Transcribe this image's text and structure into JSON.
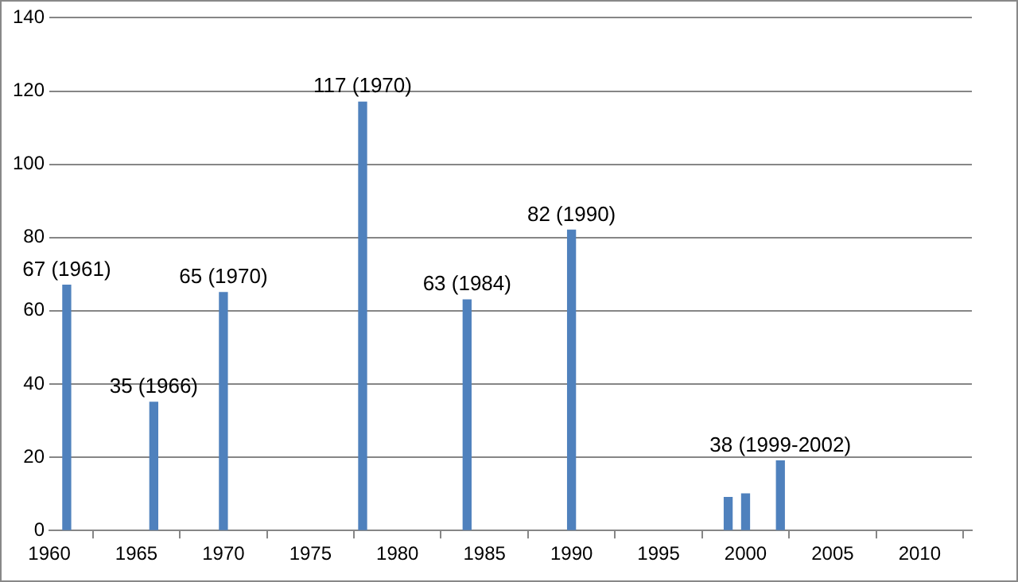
{
  "chart_data": {
    "type": "bar",
    "x": [
      1961,
      1966,
      1970,
      1978,
      1984,
      1990,
      1999,
      2000,
      2002
    ],
    "values": [
      67,
      35,
      65,
      117,
      63,
      82,
      9,
      10,
      19
    ],
    "color": "#4f81bd",
    "xlim": [
      1960,
      2013
    ],
    "xticks": [
      1960,
      1965,
      1970,
      1975,
      1980,
      1985,
      1990,
      1995,
      2000,
      2005,
      2010
    ],
    "ylim": [
      0,
      140
    ],
    "yticks": [
      0,
      20,
      40,
      60,
      80,
      100,
      120,
      140
    ],
    "grid": "y",
    "annotations": [
      {
        "text": "67 (1961)",
        "x": 1961,
        "y": 67
      },
      {
        "text": "35 (1966)",
        "x": 1966,
        "y": 35
      },
      {
        "text": "65 (1970)",
        "x": 1970,
        "y": 65
      },
      {
        "text": "117 (1970)",
        "x": 1978,
        "y": 117
      },
      {
        "text": "63 (1984)",
        "x": 1984,
        "y": 63
      },
      {
        "text": "82 (1990)",
        "x": 1990,
        "y": 82
      },
      {
        "text": "38 (1999-2002)",
        "x": 2002,
        "y": 19
      }
    ]
  }
}
